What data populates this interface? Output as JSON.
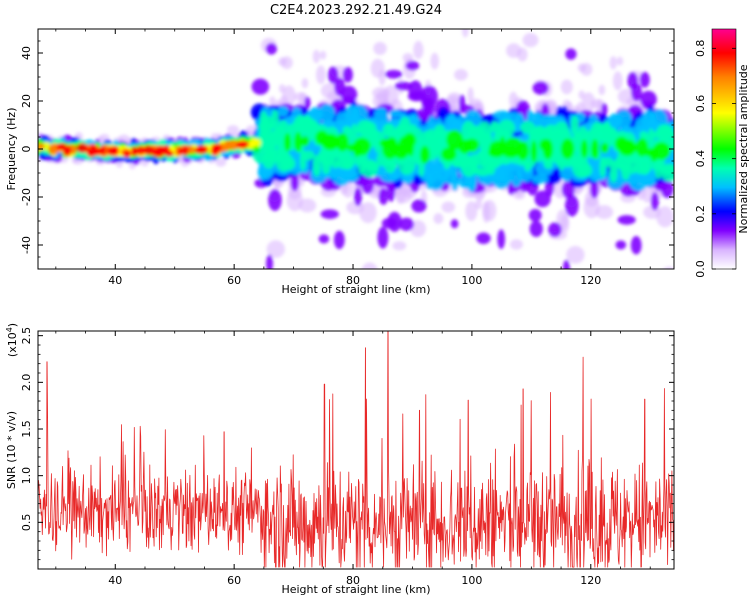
{
  "figure": {
    "title": "C2E4.2023.292.21.49.G24"
  },
  "chart_data": [
    {
      "type": "heatmap",
      "title": "C2E4.2023.292.21.49.G24",
      "xlabel": "Height of straight line (km)",
      "ylabel": "Frequency (Hz)",
      "xlim": [
        27,
        134
      ],
      "ylim": [
        -50,
        50
      ],
      "xticks": [
        40,
        60,
        80,
        100,
        120
      ],
      "yticks": [
        -40,
        -20,
        0,
        20,
        40
      ],
      "grid": false,
      "colorbar": {
        "label": "Normalized spectral amplitude",
        "range": [
          0,
          0.87
        ],
        "ticks": [
          0.0,
          0.2,
          0.4,
          0.6,
          0.8
        ],
        "colors": [
          "#ffffff",
          "#d9b3ff",
          "#8000ff",
          "#0000ff",
          "#00c0ff",
          "#00ffb0",
          "#00ff00",
          "#ffff00",
          "#ff8000",
          "#ff0000",
          "#ff0090"
        ]
      },
      "ridge": [
        {
          "x": 27,
          "y": 0.5
        },
        {
          "x": 35,
          "y": -0.5
        },
        {
          "x": 45,
          "y": -1
        },
        {
          "x": 55,
          "y": 0
        },
        {
          "x": 62,
          "y": 2
        },
        {
          "x": 70,
          "y": 3
        },
        {
          "x": 80,
          "y": 2
        },
        {
          "x": 90,
          "y": 1
        },
        {
          "x": 100,
          "y": 0
        },
        {
          "x": 110,
          "y": 1
        },
        {
          "x": 120,
          "y": 0
        },
        {
          "x": 134,
          "y": 0
        }
      ]
    },
    {
      "type": "line",
      "xlabel": "Height of straight line (km)",
      "ylabel": "SNR (10 * v/v)",
      "y_multiplier": "(x10",
      "y_multiplier_exp": "4",
      "y_multiplier_close": ")",
      "xlim": [
        27,
        134
      ],
      "ylim": [
        0,
        2.55
      ],
      "xticks": [
        40,
        60,
        80,
        100,
        120
      ],
      "yticks": [
        0.5,
        1.0,
        1.5,
        2.0,
        2.5
      ],
      "grid": false,
      "color": "#e82828",
      "spikes": [
        {
          "x": 28.5,
          "y": 2.22
        },
        {
          "x": 58.3,
          "y": 1.47
        },
        {
          "x": 75.2,
          "y": 1.98
        },
        {
          "x": 82.1,
          "y": 2.37
        },
        {
          "x": 85.9,
          "y": 2.55
        },
        {
          "x": 91.2,
          "y": 1.7
        },
        {
          "x": 99.4,
          "y": 1.81
        },
        {
          "x": 108.6,
          "y": 1.93
        },
        {
          "x": 118.7,
          "y": 2.27
        },
        {
          "x": 129.1,
          "y": 1.82
        }
      ]
    }
  ]
}
